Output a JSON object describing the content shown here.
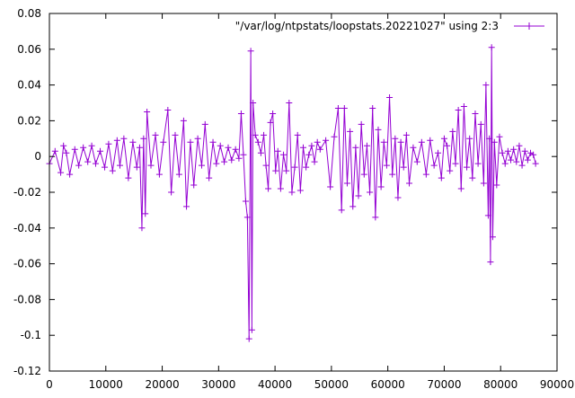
{
  "chart_data": {
    "type": "line",
    "title": "",
    "xlabel": "",
    "ylabel": "",
    "xlim": [
      0,
      90000
    ],
    "ylim": [
      -0.12,
      0.08
    ],
    "grid": false,
    "legend_position": "top-right",
    "x_ticks": [
      0,
      10000,
      20000,
      30000,
      40000,
      50000,
      60000,
      70000,
      80000,
      90000
    ],
    "x_tick_labels": [
      "0",
      "10000",
      "20000",
      "30000",
      "40000",
      "50000",
      "60000",
      "70000",
      "80000",
      "90000"
    ],
    "y_ticks": [
      0.08,
      0.06,
      0.04,
      0.02,
      0,
      -0.02,
      -0.04,
      -0.06,
      -0.08,
      -0.1,
      -0.12
    ],
    "y_tick_labels": [
      "0.08",
      "0.06",
      "0.04",
      "0.02",
      "0",
      "-0.02",
      "-0.04",
      "-0.06",
      "-0.08",
      "-0.1",
      "-0.12"
    ],
    "series": [
      {
        "name": "\"/var/log/ntpstats/loopstats.20221027\" using 2:3",
        "color": "#9400d3",
        "marker": "plus",
        "x": [
          0,
          1000,
          2000,
          2500,
          3000,
          3600,
          4500,
          5200,
          6000,
          6800,
          7500,
          8200,
          9000,
          9800,
          10500,
          11200,
          12000,
          12500,
          13200,
          14000,
          14800,
          15500,
          16000,
          16400,
          16700,
          17000,
          17300,
          18000,
          18800,
          19500,
          20200,
          21000,
          21600,
          22300,
          23000,
          23800,
          24300,
          25000,
          25600,
          26300,
          27000,
          27600,
          28300,
          29000,
          29600,
          30300,
          31000,
          31700,
          32300,
          33000,
          33600,
          34000,
          34400,
          34800,
          35100,
          35400,
          35700,
          35900,
          36100,
          36500,
          37000,
          37500,
          38000,
          38400,
          38800,
          39200,
          39600,
          40100,
          40500,
          41000,
          41500,
          42000,
          42500,
          43000,
          43500,
          44000,
          44500,
          45000,
          45500,
          46000,
          46500,
          47000,
          47500,
          48000,
          49000,
          49800,
          50500,
          51200,
          51800,
          52300,
          52800,
          53300,
          53800,
          54300,
          54800,
          55300,
          55800,
          56300,
          56800,
          57300,
          57800,
          58300,
          58800,
          59300,
          59800,
          60300,
          60800,
          61300,
          61800,
          62300,
          62800,
          63300,
          63800,
          64500,
          65200,
          66000,
          66800,
          67500,
          68200,
          68900,
          69500,
          70000,
          70500,
          71000,
          71500,
          72000,
          72500,
          73000,
          73500,
          74000,
          74500,
          75000,
          75500,
          76000,
          76500,
          77000,
          77400,
          77800,
          78000,
          78200,
          78400,
          78600,
          78900,
          79300,
          79800,
          80300,
          80800,
          81300,
          81800,
          82300,
          82800,
          83300,
          83800,
          84300,
          84800,
          85300,
          85800,
          86200
        ],
        "y": [
          -0.004,
          0.003,
          -0.009,
          0.006,
          0.002,
          -0.01,
          0.004,
          -0.005,
          0.005,
          -0.003,
          0.006,
          -0.004,
          0.003,
          -0.006,
          0.007,
          -0.008,
          0.009,
          -0.005,
          0.01,
          -0.012,
          0.008,
          -0.006,
          0.005,
          -0.04,
          0.01,
          -0.032,
          0.025,
          -0.005,
          0.012,
          -0.01,
          0.008,
          0.026,
          -0.02,
          0.012,
          -0.01,
          0.02,
          -0.028,
          0.008,
          -0.016,
          0.01,
          -0.005,
          0.018,
          -0.012,
          0.008,
          -0.004,
          0.006,
          -0.003,
          0.005,
          -0.002,
          0.004,
          -0.001,
          0.024,
          0.001,
          -0.025,
          -0.034,
          -0.102,
          0.059,
          -0.097,
          0.03,
          0.012,
          0.008,
          0.002,
          0.012,
          -0.005,
          -0.018,
          0.019,
          0.024,
          -0.008,
          0.003,
          -0.018,
          0.001,
          -0.008,
          0.03,
          -0.02,
          -0.006,
          0.012,
          -0.019,
          0.005,
          -0.006,
          0.001,
          0.006,
          -0.003,
          0.008,
          0.004,
          0.009,
          -0.017,
          0.011,
          0.027,
          -0.03,
          0.027,
          -0.015,
          0.014,
          -0.028,
          0.005,
          -0.022,
          0.018,
          -0.01,
          0.006,
          -0.02,
          0.027,
          -0.034,
          0.015,
          -0.017,
          0.008,
          -0.005,
          0.033,
          -0.01,
          0.01,
          -0.023,
          0.008,
          -0.006,
          0.012,
          -0.015,
          0.005,
          -0.003,
          0.008,
          -0.01,
          0.009,
          -0.005,
          0.002,
          -0.012,
          0.01,
          0.006,
          -0.008,
          0.014,
          -0.004,
          0.026,
          -0.018,
          0.028,
          -0.006,
          0.01,
          -0.012,
          0.024,
          -0.004,
          0.018,
          -0.015,
          0.04,
          -0.033,
          0.01,
          -0.059,
          0.061,
          -0.045,
          0.008,
          -0.016,
          0.011,
          0.002,
          -0.004,
          0.003,
          -0.002,
          0.004,
          -0.003,
          0.006,
          -0.005,
          0.003,
          -0.002,
          0.002,
          0.001,
          -0.004
        ]
      }
    ]
  }
}
